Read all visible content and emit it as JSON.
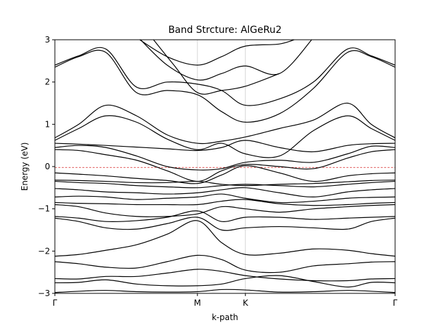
{
  "chart_data": {
    "type": "line",
    "title": "Band Strcture: AlGeRu2",
    "xlabel": "k-path",
    "ylabel": "Energy (eV)",
    "ylim": [
      -3,
      3
    ],
    "yticks": [
      -3,
      -2,
      -1,
      0,
      1,
      2,
      3
    ],
    "ytick_labels": [
      "−3",
      "−2",
      "−1",
      "0",
      "1",
      "2",
      "3"
    ],
    "xlim": [
      0,
      1
    ],
    "kpoints": [
      {
        "label": "Γ",
        "x": 0.0
      },
      {
        "label": "M",
        "x": 0.419
      },
      {
        "label": "K",
        "x": 0.56
      },
      {
        "label": "Γ",
        "x": 1.0
      }
    ],
    "fermi_level": -0.02,
    "grid": "vertical lines at high-symmetry points",
    "line_color": "#000000",
    "fermi_color": "#d62728",
    "series": [
      {
        "x": [
          0,
          0.07,
          0.15,
          0.24,
          0.33,
          0.419,
          0.49,
          0.56,
          0.66,
          0.76,
          0.86,
          0.93,
          1
        ],
        "values": [
          -2.98,
          -2.95,
          -2.93,
          -2.96,
          -2.97,
          -2.96,
          -2.91,
          -2.92,
          -2.97,
          -2.96,
          -2.93,
          -2.95,
          -2.98
        ]
      },
      {
        "x": [
          0,
          0.07,
          0.15,
          0.24,
          0.33,
          0.419,
          0.49,
          0.56,
          0.66,
          0.76,
          0.86,
          0.93,
          1
        ],
        "values": [
          -2.75,
          -2.74,
          -2.68,
          -2.78,
          -2.82,
          -2.82,
          -2.78,
          -2.65,
          -2.58,
          -2.72,
          -2.85,
          -2.74,
          -2.75
        ]
      },
      {
        "x": [
          0,
          0.07,
          0.15,
          0.24,
          0.33,
          0.419,
          0.49,
          0.56,
          0.66,
          0.76,
          0.86,
          0.93,
          1
        ],
        "values": [
          -2.65,
          -2.66,
          -2.6,
          -2.6,
          -2.52,
          -2.43,
          -2.48,
          -2.58,
          -2.66,
          -2.7,
          -2.7,
          -2.66,
          -2.65
        ]
      },
      {
        "x": [
          0,
          0.07,
          0.15,
          0.24,
          0.33,
          0.419,
          0.49,
          0.56,
          0.66,
          0.76,
          0.86,
          0.93,
          1
        ],
        "values": [
          -2.25,
          -2.3,
          -2.38,
          -2.4,
          -2.25,
          -2.1,
          -2.2,
          -2.45,
          -2.5,
          -2.35,
          -2.3,
          -2.26,
          -2.25
        ]
      },
      {
        "x": [
          0,
          0.07,
          0.15,
          0.24,
          0.33,
          0.419,
          0.49,
          0.56,
          0.66,
          0.76,
          0.86,
          0.93,
          1
        ],
        "values": [
          -2.12,
          -2.08,
          -1.98,
          -1.85,
          -1.6,
          -1.28,
          -1.8,
          -2.08,
          -2.05,
          -1.95,
          -1.98,
          -2.06,
          -2.12
        ]
      },
      {
        "x": [
          0,
          0.07,
          0.15,
          0.24,
          0.33,
          0.419,
          0.49,
          0.56,
          0.66,
          0.76,
          0.86,
          0.93,
          1
        ],
        "values": [
          -1.22,
          -1.3,
          -1.45,
          -1.48,
          -1.35,
          -1.2,
          -1.5,
          -1.45,
          -1.42,
          -1.45,
          -1.48,
          -1.3,
          -1.22
        ]
      },
      {
        "x": [
          0,
          0.07,
          0.15,
          0.24,
          0.33,
          0.419,
          0.49,
          0.56,
          0.66,
          0.76,
          0.86,
          0.93,
          1
        ],
        "values": [
          -1.18,
          -1.22,
          -1.3,
          -1.28,
          -1.2,
          -1.05,
          -1.3,
          -1.2,
          -1.2,
          -1.25,
          -1.22,
          -1.2,
          -1.18
        ]
      },
      {
        "x": [
          0,
          0.07,
          0.15,
          0.24,
          0.33,
          0.419,
          0.49,
          0.56,
          0.66,
          0.76,
          0.86,
          0.93,
          1
        ],
        "values": [
          -0.9,
          -0.95,
          -1.1,
          -1.18,
          -1.18,
          -1.12,
          -0.95,
          -1.0,
          -1.08,
          -1.0,
          -0.95,
          -0.92,
          -0.9
        ]
      },
      {
        "x": [
          0,
          0.07,
          0.15,
          0.24,
          0.33,
          0.419,
          0.49,
          0.56,
          0.66,
          0.76,
          0.86,
          0.93,
          1
        ],
        "values": [
          -0.85,
          -0.87,
          -0.88,
          -0.9,
          -0.9,
          -0.9,
          -0.82,
          -0.78,
          -0.88,
          -0.92,
          -0.9,
          -0.87,
          -0.85
        ]
      },
      {
        "x": [
          0,
          0.07,
          0.15,
          0.24,
          0.33,
          0.419,
          0.49,
          0.56,
          0.66,
          0.76,
          0.86,
          0.93,
          1
        ],
        "values": [
          -0.72,
          -0.7,
          -0.72,
          -0.78,
          -0.75,
          -0.72,
          -0.65,
          -0.75,
          -0.85,
          -0.82,
          -0.75,
          -0.73,
          -0.72
        ]
      },
      {
        "x": [
          0,
          0.07,
          0.15,
          0.24,
          0.33,
          0.419,
          0.49,
          0.56,
          0.66,
          0.76,
          0.86,
          0.93,
          1
        ],
        "values": [
          -0.52,
          -0.55,
          -0.6,
          -0.62,
          -0.65,
          -0.62,
          -0.55,
          -0.5,
          -0.62,
          -0.72,
          -0.6,
          -0.55,
          -0.52
        ]
      },
      {
        "x": [
          0,
          0.07,
          0.15,
          0.24,
          0.33,
          0.419,
          0.49,
          0.56,
          0.66,
          0.76,
          0.86,
          0.93,
          1
        ],
        "values": [
          -0.35,
          -0.38,
          -0.4,
          -0.45,
          -0.48,
          -0.5,
          -0.45,
          -0.42,
          -0.45,
          -0.48,
          -0.42,
          -0.38,
          -0.35
        ]
      },
      {
        "x": [
          0,
          0.07,
          0.15,
          0.24,
          0.33,
          0.419,
          0.49,
          0.56,
          0.66,
          0.76,
          0.86,
          0.93,
          1
        ],
        "values": [
          -0.32,
          -0.33,
          -0.35,
          -0.38,
          -0.38,
          -0.35,
          -0.42,
          -0.45,
          -0.42,
          -0.4,
          -0.36,
          -0.33,
          -0.32
        ]
      },
      {
        "x": [
          0,
          0.07,
          0.15,
          0.24,
          0.33,
          0.419,
          0.49,
          0.56,
          0.66,
          0.76,
          0.86,
          0.93,
          1
        ],
        "values": [
          -0.15,
          -0.18,
          -0.22,
          -0.28,
          -0.33,
          -0.4,
          -0.2,
          0.02,
          -0.15,
          -0.35,
          -0.22,
          -0.17,
          -0.15
        ]
      },
      {
        "x": [
          0,
          0.07,
          0.15,
          0.24,
          0.33,
          0.419,
          0.49,
          0.56,
          0.66,
          0.76,
          0.86,
          0.93,
          1
        ],
        "values": [
          0.4,
          0.38,
          0.28,
          0.15,
          -0.1,
          -0.35,
          -0.1,
          0.05,
          0.0,
          -0.05,
          0.2,
          0.35,
          0.4
        ]
      },
      {
        "x": [
          0,
          0.07,
          0.15,
          0.24,
          0.33,
          0.419,
          0.49,
          0.56,
          0.66,
          0.76,
          0.86,
          0.93,
          1
        ],
        "values": [
          0.45,
          0.5,
          0.45,
          0.25,
          0.0,
          -0.08,
          -0.05,
          0.1,
          0.15,
          0.1,
          0.3,
          0.48,
          0.45
        ]
      },
      {
        "x": [
          0,
          0.07,
          0.15,
          0.24,
          0.33,
          0.419,
          0.49,
          0.56,
          0.66,
          0.76,
          0.86,
          0.93,
          1
        ],
        "values": [
          0.55,
          0.53,
          0.5,
          0.46,
          0.42,
          0.38,
          0.45,
          0.62,
          0.45,
          0.35,
          0.5,
          0.54,
          0.55
        ]
      },
      {
        "x": [
          0,
          0.07,
          0.15,
          0.24,
          0.33,
          0.419,
          0.49,
          0.56,
          0.66,
          0.76,
          0.86,
          0.93,
          1
        ],
        "values": [
          0.62,
          0.9,
          1.2,
          1.05,
          0.65,
          0.4,
          0.55,
          0.3,
          0.25,
          0.85,
          1.2,
          0.9,
          0.62
        ]
      },
      {
        "x": [
          0,
          0.07,
          0.15,
          0.24,
          0.33,
          0.419,
          0.49,
          0.56,
          0.66,
          0.76,
          0.86,
          0.93,
          1
        ],
        "values": [
          0.68,
          1.0,
          1.45,
          1.2,
          0.75,
          0.55,
          0.6,
          0.7,
          0.9,
          1.1,
          1.5,
          1.0,
          0.68
        ]
      },
      {
        "x": [
          0,
          0.07,
          0.15,
          0.24,
          0.33,
          0.419,
          0.49,
          0.56,
          0.66,
          0.76,
          0.86,
          0.93,
          1
        ],
        "values": [
          2.35,
          2.6,
          2.7,
          1.75,
          1.8,
          1.7,
          1.3,
          1.05,
          1.25,
          1.85,
          2.7,
          2.6,
          2.35
        ]
      },
      {
        "x": [
          0,
          0.07,
          0.15,
          0.24,
          0.33,
          0.419,
          0.49,
          0.56,
          0.66,
          0.76,
          0.86,
          0.93,
          1
        ],
        "values": [
          2.4,
          2.62,
          2.78,
          1.88,
          2.0,
          1.95,
          1.8,
          1.45,
          1.6,
          2.0,
          2.78,
          2.62,
          2.4
        ]
      },
      {
        "x": [
          0.24,
          0.33,
          0.419,
          0.49,
          0.56,
          0.66,
          0.76
        ],
        "values": [
          3.1,
          2.4,
          2.05,
          2.2,
          2.38,
          2.2,
          3.05
        ]
      },
      {
        "x": [
          0.24,
          0.33,
          0.419,
          0.49,
          0.56,
          0.66,
          0.72
        ],
        "values": [
          3.05,
          2.6,
          2.4,
          2.6,
          2.85,
          2.9,
          3.05
        ]
      },
      {
        "x": [
          0.28,
          0.35,
          0.419,
          0.49,
          0.56,
          0.66
        ],
        "values": [
          3.1,
          2.4,
          1.75,
          1.8,
          1.9,
          2.2
        ]
      }
    ]
  }
}
